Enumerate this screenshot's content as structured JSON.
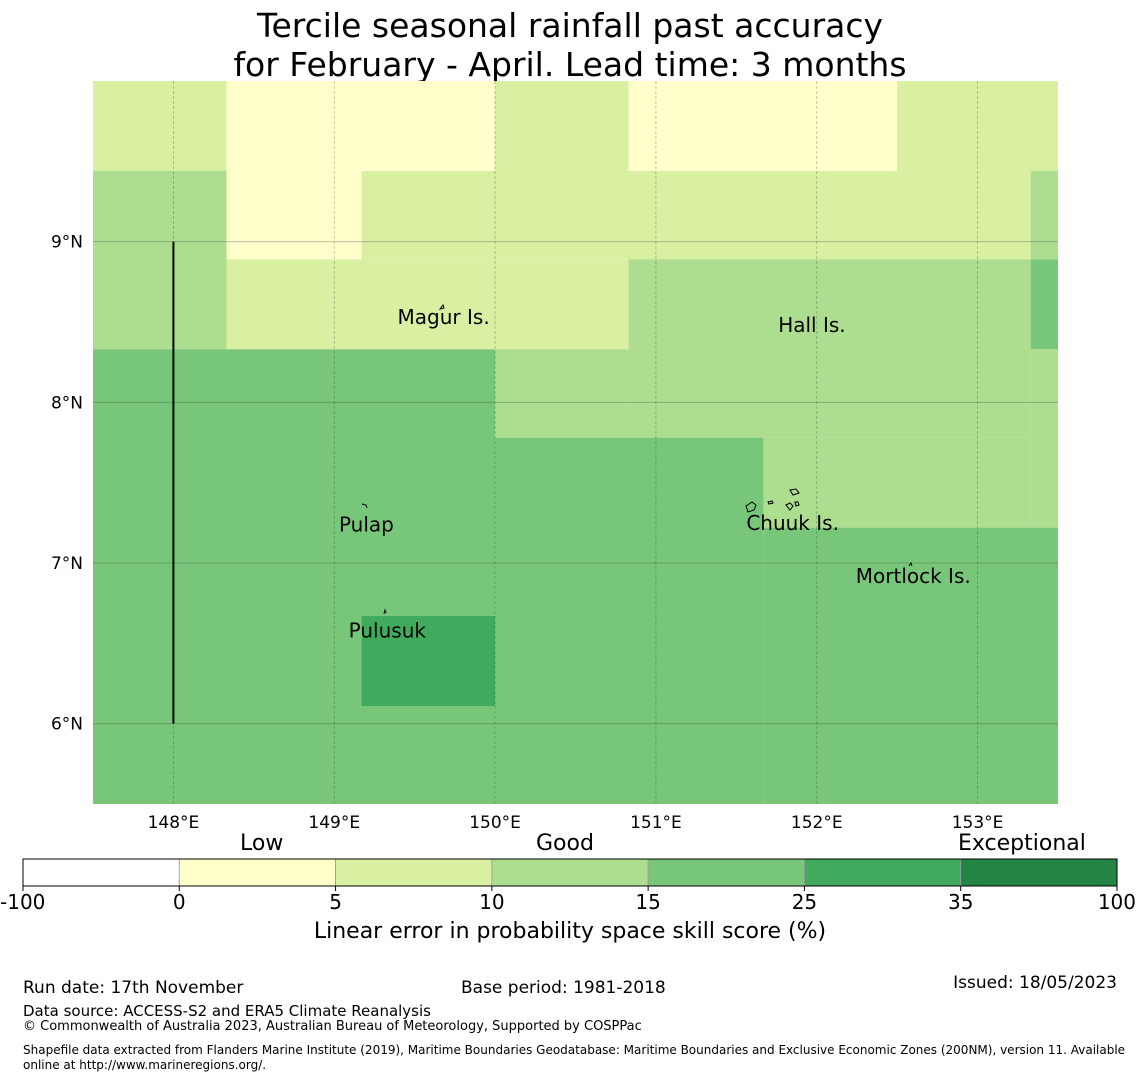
{
  "title": {
    "line1": "Tercile seasonal rainfall past accuracy",
    "line2": "for February - April. Lead time: 3 months"
  },
  "map": {
    "lon_range": [
      147.5,
      153.5
    ],
    "lat_range": [
      5.5,
      10.0
    ],
    "lon_ticks": [
      148,
      149,
      150,
      151,
      152,
      153
    ],
    "lon_tick_labels": [
      "148°E",
      "149°E",
      "150°E",
      "151°E",
      "152°E",
      "153°E"
    ],
    "lat_ticks": [
      9,
      8,
      7,
      6
    ],
    "lat_tick_labels": [
      "9°N",
      "8°N",
      "7°N",
      "6°N"
    ],
    "skill_cells": [
      {
        "lon": [
          147.5,
          148.33
        ],
        "lat": [
          9.44,
          10.0
        ],
        "score_class": "5-10"
      },
      {
        "lon": [
          148.33,
          150.0
        ],
        "lat": [
          9.44,
          10.0
        ],
        "score_class": "0-5"
      },
      {
        "lon": [
          150.0,
          150.83
        ],
        "lat": [
          9.44,
          10.0
        ],
        "score_class": "5-10"
      },
      {
        "lon": [
          150.83,
          152.5
        ],
        "lat": [
          9.44,
          10.0
        ],
        "score_class": "0-5"
      },
      {
        "lon": [
          152.5,
          153.5
        ],
        "lat": [
          9.44,
          10.0
        ],
        "score_class": "5-10"
      },
      {
        "lon": [
          147.5,
          148.33
        ],
        "lat": [
          8.33,
          9.44
        ],
        "score_class": "10-15"
      },
      {
        "lon": [
          148.33,
          149.17
        ],
        "lat": [
          8.89,
          9.44
        ],
        "score_class": "0-5"
      },
      {
        "lon": [
          149.17,
          153.33
        ],
        "lat": [
          8.89,
          9.44
        ],
        "score_class": "5-10"
      },
      {
        "lon": [
          153.33,
          153.5
        ],
        "lat": [
          8.89,
          9.44
        ],
        "score_class": "10-15"
      },
      {
        "lon": [
          148.33,
          150.83
        ],
        "lat": [
          8.33,
          8.89
        ],
        "score_class": "5-10"
      },
      {
        "lon": [
          150.83,
          153.33
        ],
        "lat": [
          7.78,
          8.89
        ],
        "score_class": "10-15"
      },
      {
        "lon": [
          153.33,
          153.5
        ],
        "lat": [
          8.33,
          8.89
        ],
        "score_class": "15-25"
      },
      {
        "lon": [
          153.33,
          153.5
        ],
        "lat": [
          7.22,
          8.33
        ],
        "score_class": "10-15"
      },
      {
        "lon": [
          147.5,
          150.0
        ],
        "lat": [
          5.5,
          8.33
        ],
        "score_class": "15-25"
      },
      {
        "lon": [
          150.0,
          150.83
        ],
        "lat": [
          7.78,
          8.33
        ],
        "score_class": "10-15"
      },
      {
        "lon": [
          150.0,
          151.67
        ],
        "lat": [
          5.5,
          7.78
        ],
        "score_class": "15-25"
      },
      {
        "lon": [
          151.67,
          153.33
        ],
        "lat": [
          7.22,
          7.78
        ],
        "score_class": "10-15"
      },
      {
        "lon": [
          151.67,
          153.5
        ],
        "lat": [
          5.5,
          7.22
        ],
        "score_class": "15-25"
      },
      {
        "lon": [
          149.17,
          150.0
        ],
        "lat": [
          6.11,
          6.67
        ],
        "score_class": "25-35"
      }
    ],
    "boundary_line": {
      "lon": 148.0,
      "lat": [
        6.0,
        9.0
      ]
    },
    "places": [
      {
        "name": "Magur Is.",
        "lon": 149.68,
        "lat": 8.53
      },
      {
        "name": "Hall Is.",
        "lon": 151.97,
        "lat": 8.48
      },
      {
        "name": "Pulap",
        "lon": 149.2,
        "lat": 7.24
      },
      {
        "name": "Chuuk Is.",
        "lon": 151.85,
        "lat": 7.25
      },
      {
        "name": "Mortlock Is.",
        "lon": 152.6,
        "lat": 6.92
      },
      {
        "name": "Pulusuk",
        "lon": 149.33,
        "lat": 6.58
      }
    ]
  },
  "colorbar": {
    "category_labels": [
      "Low",
      "Good",
      "Exceptional"
    ],
    "tick_labels": [
      "-100",
      "0",
      "5",
      "10",
      "15",
      "25",
      "35",
      "100"
    ],
    "colors": [
      "#ffffff",
      "#ffffcc",
      "#d9f0a3",
      "#addd8e",
      "#78c679",
      "#41ab5d",
      "#238443"
    ],
    "label": "Linear error in probability space skill score (%)"
  },
  "score_colors": {
    "0-5": "#ffffcc",
    "5-10": "#d9f0a3",
    "10-15": "#addd8e",
    "15-25": "#78c679",
    "25-35": "#41ab5d"
  },
  "footer": {
    "run_date": "Run date: 17th November",
    "base_period": "Base period: 1981-2018",
    "issued": "Issued: 18/05/2023",
    "data_source": "Data source: ACCESS-S2 and ERA5 Climate Reanalysis",
    "copyright": "© Commonwealth of Australia 2023, Australian Bureau of Meteorology, Supported by COSPPac",
    "shapefile_line1": "Shapefile data extracted from Flanders Marine Institute (2019), Maritime Boundaries Geodatabase: Maritime Boundaries and Exclusive Economic Zones (200NM), version 11. Available",
    "shapefile_line2": "online at http://www.marineregions.org/."
  }
}
